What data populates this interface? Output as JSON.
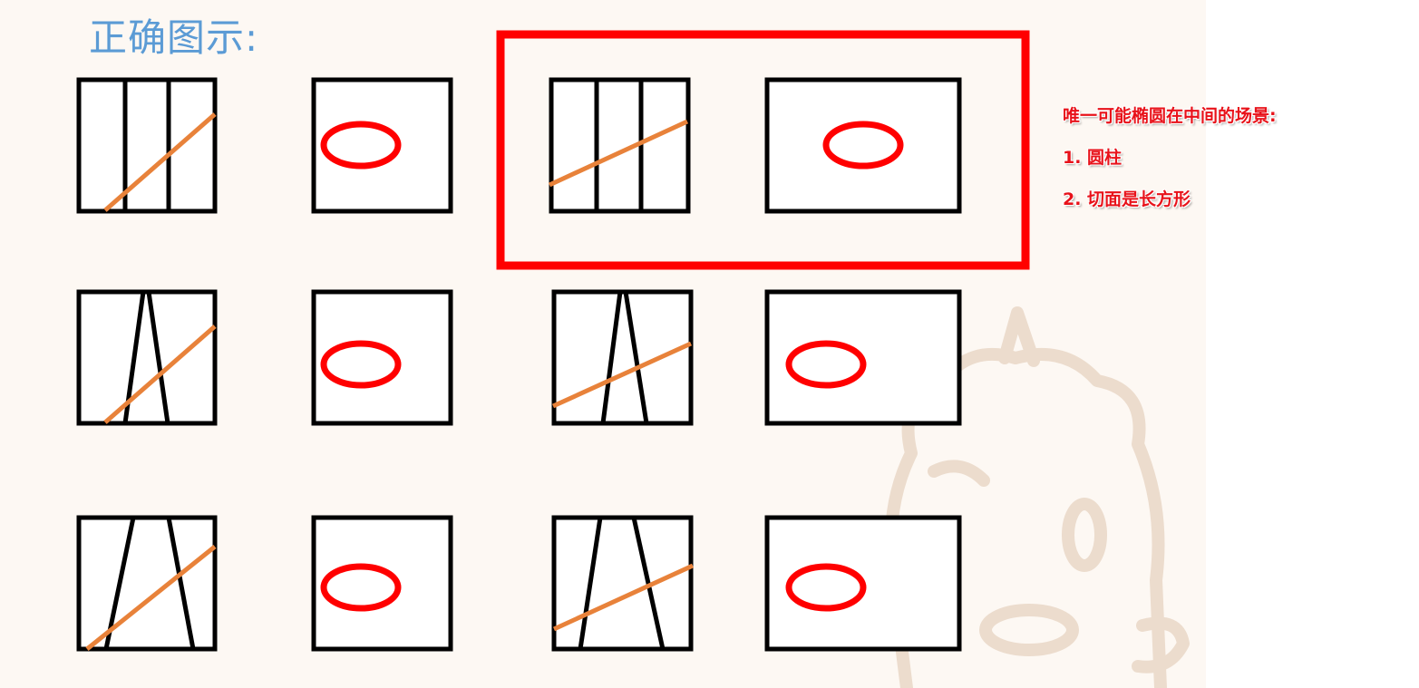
{
  "title": "正确图示:",
  "note": {
    "heading": "唯一可能椭圆在中间的场景:",
    "items": [
      "1. 圆柱",
      "2. 切面是长方形"
    ]
  },
  "colors": {
    "title": "#5b9bd5",
    "highlight": "#ff0000",
    "ellipse": "#ff0000",
    "plane_line": "#e8823a",
    "outline": "#000000",
    "note": "#e8121a",
    "background": "#fdf8f3",
    "watermark": "#eadbcd"
  },
  "rows": [
    {
      "shape": "cylinder",
      "ellipse_position": "center-left",
      "highlighted": false
    },
    {
      "shape": "cylinder",
      "ellipse_position": "center",
      "highlighted": true
    },
    {
      "shape": "narrow-cone",
      "ellipse_position": "center-left",
      "highlighted": false
    },
    {
      "shape": "narrow-cone",
      "ellipse_position": "left",
      "highlighted": false
    },
    {
      "shape": "wide-cone",
      "ellipse_position": "center-left",
      "highlighted": false
    },
    {
      "shape": "wide-cone",
      "ellipse_position": "left",
      "highlighted": false
    }
  ],
  "watermark_icon": "unicorn-mascot-icon"
}
